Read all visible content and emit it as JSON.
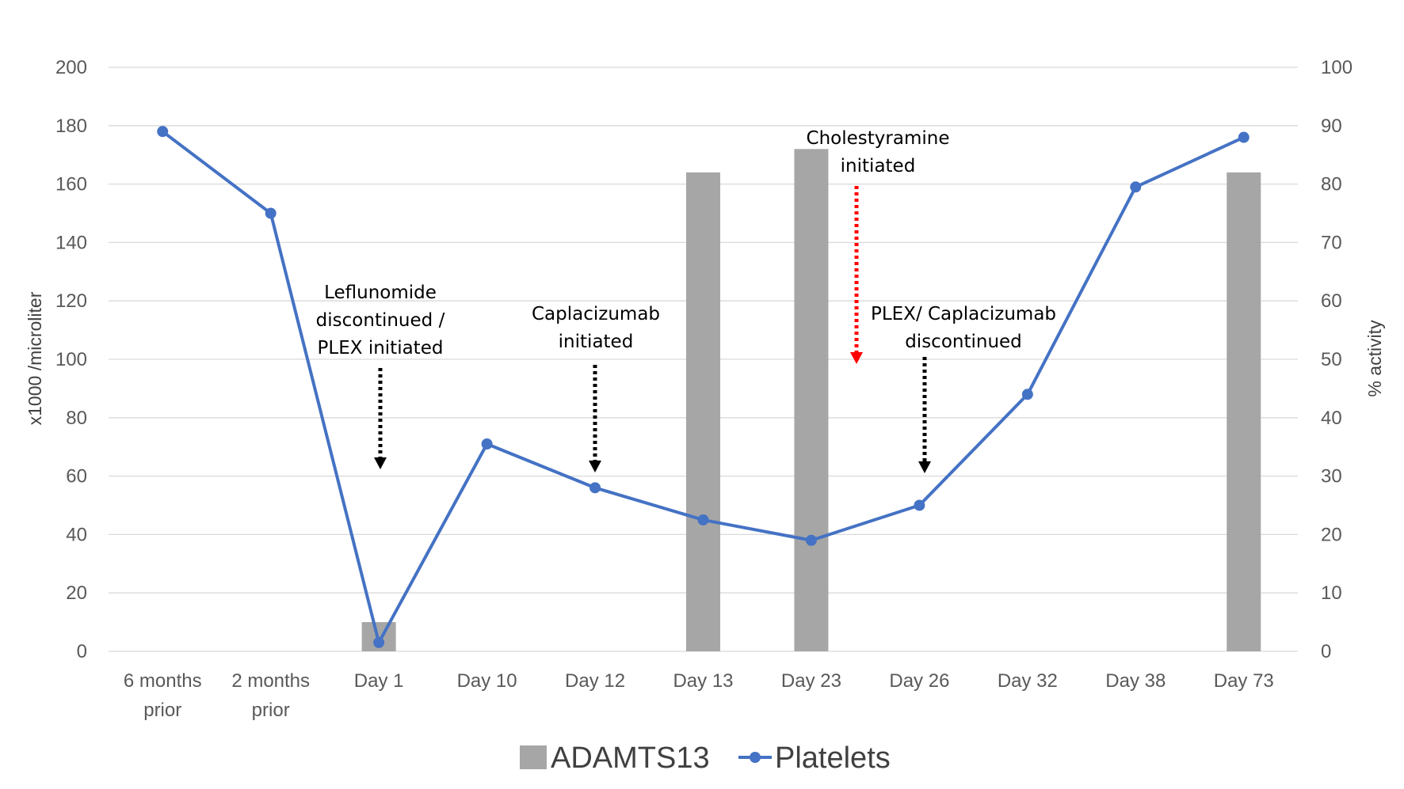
{
  "chart_data": {
    "type": "bar+line",
    "categories": [
      [
        "6 months",
        "prior"
      ],
      [
        "2 months",
        "prior"
      ],
      [
        "Day 1"
      ],
      [
        "Day 10"
      ],
      [
        "Day 12"
      ],
      [
        "Day 13"
      ],
      [
        "Day 23"
      ],
      [
        "Day 26"
      ],
      [
        "Day 32"
      ],
      [
        "Day 38"
      ],
      [
        "Day 73"
      ]
    ],
    "series": [
      {
        "name": "ADAMTS13",
        "type": "bar",
        "axis": "right",
        "color": "#A6A6A6",
        "values": [
          null,
          null,
          5,
          null,
          null,
          82,
          86,
          null,
          null,
          null,
          82
        ]
      },
      {
        "name": "Platelets",
        "type": "line",
        "axis": "left",
        "color": "#4472C4",
        "values": [
          178,
          150,
          3,
          71,
          56,
          45,
          38,
          50,
          88,
          159,
          176
        ]
      }
    ],
    "ylabel": "x1000 /microliter",
    "ylabel_right": "% activity",
    "ylim": [
      0,
      200
    ],
    "ylim_right": [
      0,
      100
    ],
    "yticks": [
      "0",
      "20",
      "40",
      "60",
      "80",
      "100",
      "120",
      "140",
      "160",
      "180",
      "200"
    ],
    "yticks_right": [
      "0",
      "10",
      "20",
      "30",
      "40",
      "50",
      "60",
      "70",
      "80",
      "90",
      "100"
    ],
    "grid": true,
    "legend_position": "bottom",
    "annotations": [
      {
        "lines": [
          "Leflunomide",
          "discontinued /",
          "PLEX initiated"
        ],
        "at": 2,
        "color": "#000000"
      },
      {
        "lines": [
          "Caplacizumab",
          "initiated"
        ],
        "at": 4,
        "color": "#000000"
      },
      {
        "lines": [
          "Cholestyramine",
          "initiated"
        ],
        "at": 6.5,
        "color": "#FF0000"
      },
      {
        "lines": [
          "PLEX/ Caplacizumab",
          "discontinued"
        ],
        "at": 7,
        "color": "#000000"
      }
    ]
  }
}
